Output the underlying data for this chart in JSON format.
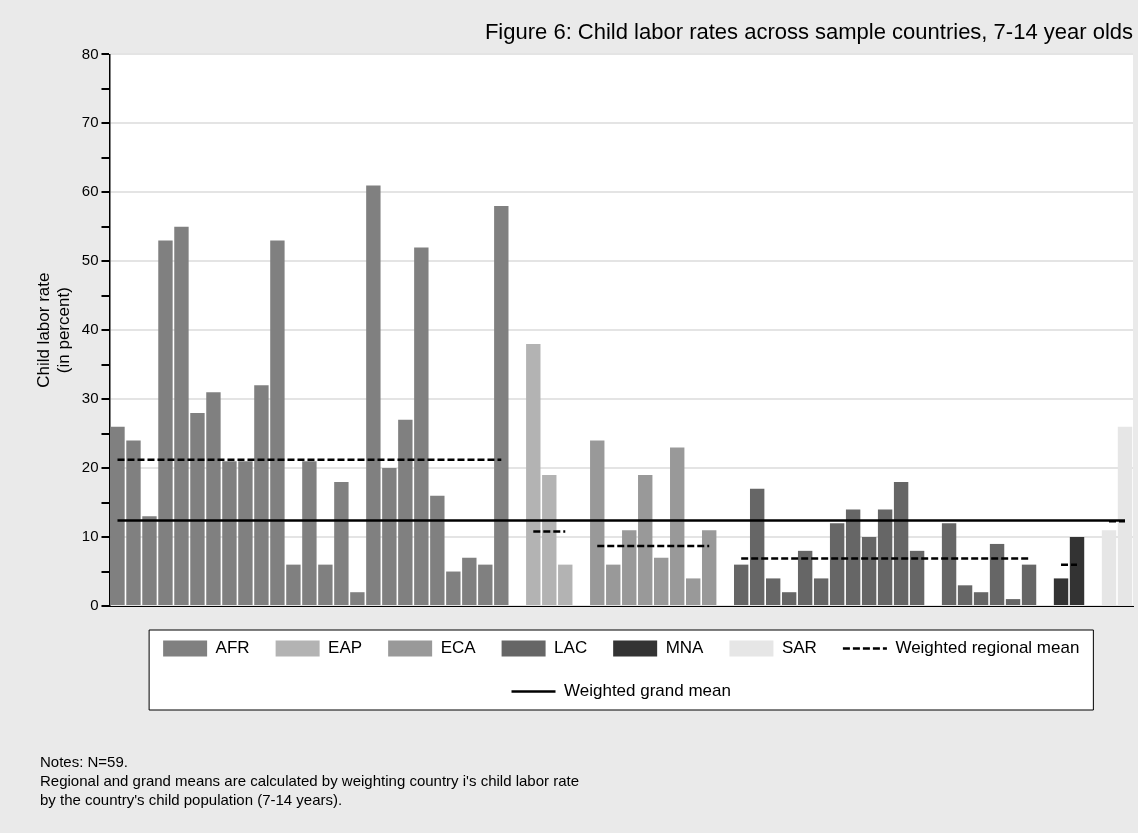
{
  "chart_data": {
    "type": "bar",
    "title": "Figure 6: Child labor rates across sample countries, 7-14 year olds",
    "ylabel": "Child labor rate\n(in percent)",
    "categories": [
      null,
      null,
      null,
      null,
      null,
      null,
      null,
      null,
      null,
      null,
      null,
      null,
      null,
      null,
      null,
      null,
      null,
      null,
      null,
      null,
      null,
      null,
      null,
      null,
      null,
      null,
      null,
      null,
      null,
      null,
      null,
      null,
      null,
      null,
      null,
      null,
      null,
      null,
      null,
      null,
      null,
      null,
      null,
      null,
      null,
      null,
      null,
      null,
      null,
      null,
      null,
      null,
      null,
      null,
      null,
      null,
      null,
      null,
      null,
      null,
      null,
      null,
      null,
      null
    ],
    "series": [
      {
        "name": "AFR",
        "color": "#808080",
        "values": [
          26,
          24,
          13,
          53,
          55,
          28,
          31,
          21,
          21,
          32,
          53,
          6,
          21,
          6,
          18,
          2,
          61,
          20,
          27,
          52,
          16,
          5,
          7,
          6,
          58,
          null,
          null,
          null,
          null,
          null,
          null,
          null,
          null,
          null,
          null,
          null,
          null,
          null,
          null,
          null,
          null,
          null,
          null,
          null,
          null,
          null,
          null,
          null,
          null,
          null,
          null,
          null,
          null,
          null,
          null,
          null,
          null,
          null,
          null,
          null,
          null,
          null,
          null,
          null
        ]
      },
      {
        "name": "EAP",
        "color": "#b3b3b3",
        "values": [
          null,
          null,
          null,
          null,
          null,
          null,
          null,
          null,
          null,
          null,
          null,
          null,
          null,
          null,
          null,
          null,
          null,
          null,
          null,
          null,
          null,
          null,
          null,
          null,
          null,
          null,
          38,
          19,
          6,
          null,
          null,
          null,
          null,
          null,
          null,
          null,
          null,
          null,
          null,
          null,
          null,
          null,
          null,
          null,
          null,
          null,
          null,
          null,
          null,
          null,
          null,
          null,
          null,
          null,
          null,
          null,
          null,
          null,
          null,
          null,
          null,
          null,
          null,
          null
        ]
      },
      {
        "name": "ECA",
        "color": "#999999",
        "values": [
          null,
          null,
          null,
          null,
          null,
          null,
          null,
          null,
          null,
          null,
          null,
          null,
          null,
          null,
          null,
          null,
          null,
          null,
          null,
          null,
          null,
          null,
          null,
          null,
          null,
          null,
          null,
          null,
          null,
          null,
          24,
          6,
          11,
          19,
          7,
          23,
          4,
          11,
          null,
          null,
          null,
          null,
          null,
          null,
          null,
          null,
          null,
          null,
          null,
          null,
          null,
          null,
          null,
          null,
          null,
          null,
          null,
          null,
          null,
          null,
          null,
          null,
          null,
          null
        ]
      },
      {
        "name": "LAC",
        "color": "#666666",
        "values": [
          null,
          null,
          null,
          null,
          null,
          null,
          null,
          null,
          null,
          null,
          null,
          null,
          null,
          null,
          null,
          null,
          null,
          null,
          null,
          null,
          null,
          null,
          null,
          null,
          null,
          null,
          null,
          null,
          null,
          null,
          null,
          null,
          null,
          null,
          null,
          null,
          null,
          null,
          null,
          6,
          17,
          4,
          2,
          8,
          4,
          12,
          14,
          10,
          14,
          18,
          8,
          null,
          12,
          3,
          2,
          9,
          1,
          6,
          null,
          null,
          null,
          null,
          null,
          null
        ]
      },
      {
        "name": "MNA",
        "color": "#333333",
        "values": [
          null,
          null,
          null,
          null,
          null,
          null,
          null,
          null,
          null,
          null,
          null,
          null,
          null,
          null,
          null,
          null,
          null,
          null,
          null,
          null,
          null,
          null,
          null,
          null,
          null,
          null,
          null,
          null,
          null,
          null,
          null,
          null,
          null,
          null,
          null,
          null,
          null,
          null,
          null,
          null,
          null,
          null,
          null,
          null,
          null,
          null,
          null,
          null,
          null,
          null,
          null,
          null,
          null,
          null,
          null,
          null,
          null,
          null,
          null,
          4,
          10,
          null,
          null,
          null
        ]
      },
      {
        "name": "SAR",
        "color": "#e6e6e6",
        "values": [
          null,
          null,
          null,
          null,
          null,
          null,
          null,
          null,
          null,
          null,
          null,
          null,
          null,
          null,
          null,
          null,
          null,
          null,
          null,
          null,
          null,
          null,
          null,
          null,
          null,
          null,
          null,
          null,
          null,
          null,
          null,
          null,
          null,
          null,
          null,
          null,
          null,
          null,
          null,
          null,
          null,
          null,
          null,
          null,
          null,
          null,
          null,
          null,
          null,
          null,
          null,
          null,
          null,
          null,
          null,
          null,
          null,
          null,
          null,
          null,
          null,
          null,
          11,
          26
        ]
      },
      {
        "name": "Weighted regional mean",
        "type": "line",
        "line_style": "dashed",
        "color": "#000000",
        "values": [
          21.2,
          21.2,
          21.2,
          21.2,
          21.2,
          21.2,
          21.2,
          21.2,
          21.2,
          21.2,
          21.2,
          21.2,
          21.2,
          21.2,
          21.2,
          21.2,
          21.2,
          21.2,
          21.2,
          21.2,
          21.2,
          21.2,
          21.2,
          21.2,
          21.2,
          null,
          10.8,
          10.8,
          10.8,
          null,
          8.7,
          8.7,
          8.7,
          8.7,
          8.7,
          8.7,
          8.7,
          8.7,
          null,
          6.9,
          6.9,
          6.9,
          6.9,
          6.9,
          6.9,
          6.9,
          6.9,
          6.9,
          6.9,
          6.9,
          6.9,
          6.9,
          6.9,
          6.9,
          6.9,
          6.9,
          6.9,
          6.9,
          null,
          6,
          6,
          null,
          12.3,
          12.3
        ]
      },
      {
        "name": "Weighted grand mean",
        "type": "line",
        "line_style": "solid",
        "color": "#000000",
        "values": [
          12.4,
          12.4,
          12.4,
          12.4,
          12.4,
          12.4,
          12.4,
          12.4,
          12.4,
          12.4,
          12.4,
          12.4,
          12.4,
          12.4,
          12.4,
          12.4,
          12.4,
          12.4,
          12.4,
          12.4,
          12.4,
          12.4,
          12.4,
          12.4,
          12.4,
          12.4,
          12.4,
          12.4,
          12.4,
          12.4,
          12.4,
          12.4,
          12.4,
          12.4,
          12.4,
          12.4,
          12.4,
          12.4,
          12.4,
          12.4,
          12.4,
          12.4,
          12.4,
          12.4,
          12.4,
          12.4,
          12.4,
          12.4,
          12.4,
          12.4,
          12.4,
          12.4,
          12.4,
          12.4,
          12.4,
          12.4,
          12.4,
          12.4,
          12.4,
          12.4,
          12.4,
          12.4,
          12.4,
          12.4
        ]
      }
    ],
    "ylim": [
      0,
      80
    ],
    "yticks": [
      0,
      {
        "value": 5,
        "label": null
      },
      10,
      {
        "value": 15,
        "label": null
      },
      20,
      {
        "value": 25,
        "label": null
      },
      30,
      {
        "value": 35,
        "label": null
      },
      40,
      {
        "value": 45,
        "label": null
      },
      50,
      {
        "value": 55,
        "label": null
      },
      60,
      {
        "value": 65,
        "label": null
      },
      70,
      {
        "value": 75,
        "label": null
      },
      80
    ],
    "tick_labels": "y",
    "grid": "y",
    "legend": "bottom",
    "marker": "none",
    "annotations": [
      "Notes: N=59.",
      "Regional and grand means are calculated by weighting country i's child labor rate\nby the country's child population (7-14 years)."
    ]
  }
}
